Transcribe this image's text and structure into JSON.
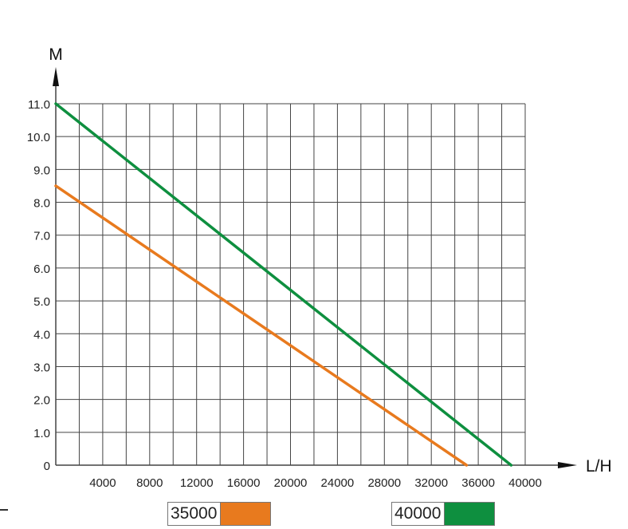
{
  "chart_data": {
    "type": "line",
    "title": "",
    "xlabel": "L/H",
    "ylabel": "M",
    "xlim": [
      0,
      40000
    ],
    "ylim": [
      0,
      11
    ],
    "grid": true,
    "x_ticks": [
      "4000",
      "8000",
      "12000",
      "16000",
      "20000",
      "24000",
      "28000",
      "32000",
      "36000",
      "40000"
    ],
    "y_ticks": [
      "0",
      "1.0",
      "2.0",
      "3.0",
      "4.0",
      "5.0",
      "6.0",
      "7.0",
      "8.0",
      "9.0",
      "10.0",
      "11.0"
    ],
    "legend_position": "bottom",
    "series": [
      {
        "name": "35000",
        "color": "#e87a1e",
        "x": [
          0,
          35000
        ],
        "y": [
          8.5,
          0
        ]
      },
      {
        "name": "40000",
        "color": "#0e8f3f",
        "x": [
          0,
          38800
        ],
        "y": [
          11.0,
          0
        ]
      }
    ]
  },
  "legend": [
    {
      "label": "35000",
      "color": "#e87a1e"
    },
    {
      "label": "40000",
      "color": "#0e8f3f"
    }
  ]
}
